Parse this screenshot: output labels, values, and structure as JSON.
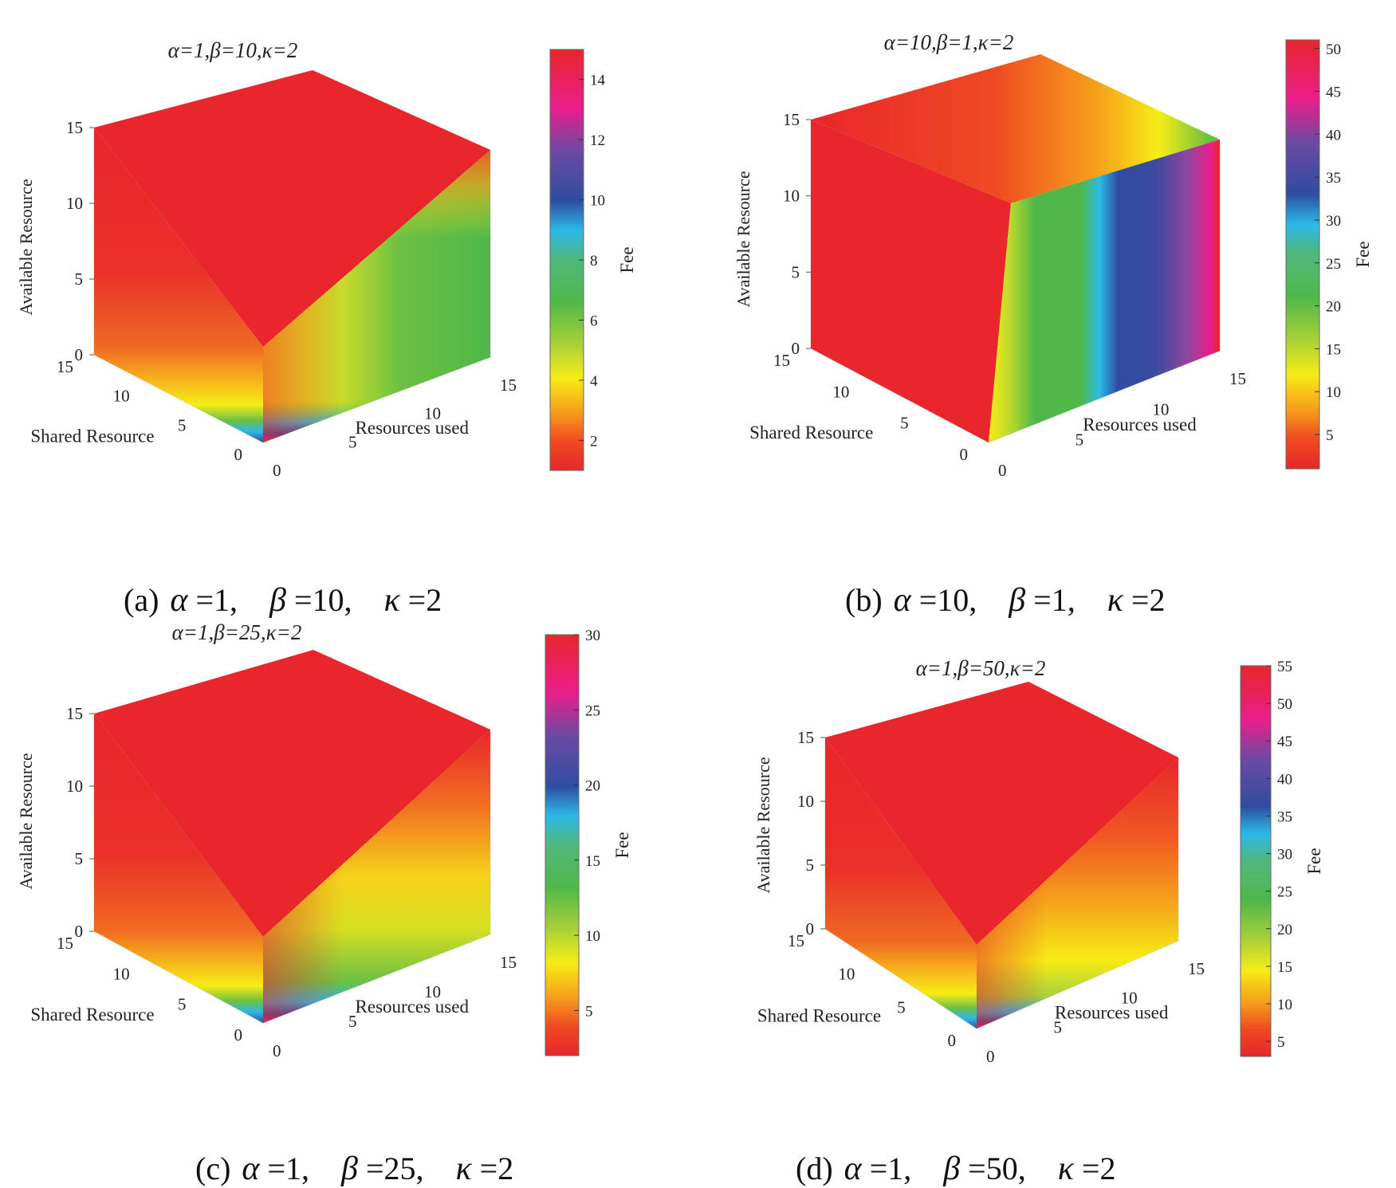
{
  "figure": {
    "axis_labels": {
      "x": "Resources used",
      "y": "Shared Resource",
      "z": "Available Resource",
      "colorbar": "Fee"
    },
    "axis_ticks": [
      "0",
      "5",
      "10",
      "15"
    ]
  },
  "panels": [
    {
      "id": "a",
      "title": "α=1,β=10,κ=2",
      "caption": {
        "letter": "(a)",
        "alpha": "=1,",
        "beta": "=10,",
        "kappa": "=2"
      },
      "colorbar_ticks": [
        "2",
        "4",
        "6",
        "8",
        "10",
        "12",
        "14"
      ]
    },
    {
      "id": "b",
      "title": "α=10,β=1,κ=2",
      "caption": {
        "letter": "(b)",
        "alpha": "=10,",
        "beta": "=1,",
        "kappa": "=2"
      },
      "colorbar_ticks": [
        "5",
        "10",
        "15",
        "20",
        "25",
        "30",
        "35",
        "40",
        "45",
        "50"
      ]
    },
    {
      "id": "c",
      "title": "α=1,β=25,κ=2",
      "caption": {
        "letter": "(c)",
        "alpha": "=1,",
        "beta": "=25,",
        "kappa": "=2"
      },
      "colorbar_ticks": [
        "5",
        "10",
        "15",
        "20",
        "25",
        "30"
      ]
    },
    {
      "id": "d",
      "title": "α=1,β=50,κ=2",
      "caption": {
        "letter": "(d)",
        "alpha": "=1,",
        "beta": "=50,",
        "kappa": "=2"
      },
      "colorbar_ticks": [
        "5",
        "10",
        "15",
        "20",
        "25",
        "30",
        "35",
        "40",
        "45",
        "50",
        "55"
      ]
    }
  ],
  "chart_data": [
    {
      "type": "heatmap",
      "subtype": "3d-volume-slice",
      "title": "α=1,β=10,κ=2",
      "params": {
        "alpha": 1,
        "beta": 10,
        "kappa": 2
      },
      "xlabel": "Resources used",
      "ylabel": "Shared Resource",
      "zlabel": "Available Resource",
      "xlim": [
        0,
        15
      ],
      "ylim": [
        0,
        15
      ],
      "zlim": [
        0,
        15
      ],
      "colorbar_label": "Fee",
      "clim": [
        1,
        15
      ],
      "colormap": "rainbow-red-to-magenta",
      "faces": {
        "top": "red (≈15) everywhere",
        "left": "red at top, falling to yellow/green near Available Resource 1 and blue at 0",
        "right": "green (≈6) at high Resources used, yellow toward the corner, magenta line at bottom edge"
      }
    },
    {
      "type": "heatmap",
      "subtype": "3d-volume-slice",
      "title": "α=10,β=1,κ=2",
      "params": {
        "alpha": 10,
        "beta": 1,
        "kappa": 2
      },
      "xlabel": "Resources used",
      "ylabel": "Shared Resource",
      "zlabel": "Available Resource",
      "xlim": [
        0,
        15
      ],
      "ylim": [
        0,
        15
      ],
      "zlim": [
        0,
        15
      ],
      "colorbar_label": "Fee",
      "clim": [
        1,
        51
      ],
      "colormap": "rainbow-red-to-magenta",
      "faces": {
        "top": "red at low Resources used, orange/yellow/green toward high",
        "left": "uniform red",
        "right": "vertical bands: yellow → green → cyan → blue → magenta (≈50) with increasing Resources used"
      }
    },
    {
      "type": "heatmap",
      "subtype": "3d-volume-slice",
      "title": "α=1,β=25,κ=2",
      "params": {
        "alpha": 1,
        "beta": 25,
        "kappa": 2
      },
      "xlabel": "Resources used",
      "ylabel": "Shared Resource",
      "zlabel": "Available Resource",
      "xlim": [
        0,
        15
      ],
      "ylim": [
        0,
        15
      ],
      "zlim": [
        0,
        15
      ],
      "colorbar_label": "Fee",
      "clim": [
        2,
        30
      ],
      "colormap": "rainbow-red-to-magenta",
      "faces": {
        "top": "red (≈30)",
        "left": "red at top, orange/yellow/green toward bottom, blue band at 0",
        "right": "red at top, yellow to green lower, blue/magenta at bottom edge"
      }
    },
    {
      "type": "heatmap",
      "subtype": "3d-volume-slice",
      "title": "α=1,β=50,κ=2",
      "params": {
        "alpha": 1,
        "beta": 50,
        "kappa": 2
      },
      "xlabel": "Resources used",
      "ylabel": "Shared Resource",
      "zlabel": "Available Resource",
      "xlim": [
        0,
        15
      ],
      "ylim": [
        0,
        15
      ],
      "zlim": [
        0,
        15
      ],
      "colorbar_label": "Fee",
      "clim": [
        3,
        55
      ],
      "colormap": "rainbow-red-to-magenta",
      "faces": {
        "top": "red (≈55)",
        "left": "red at top, orange/yellow/green near bottom, blue band at 0",
        "right": "red/orange at top, yellow/green lower, blue/magenta at bottom edge"
      }
    }
  ],
  "colors": {
    "red": "#e8262b",
    "orange": "#f26b21",
    "yellow": "#f6ec15",
    "green": "#4fb848",
    "cyan": "#2cb9e8",
    "blue": "#2e4da0",
    "magenta": "#e91e8c"
  }
}
